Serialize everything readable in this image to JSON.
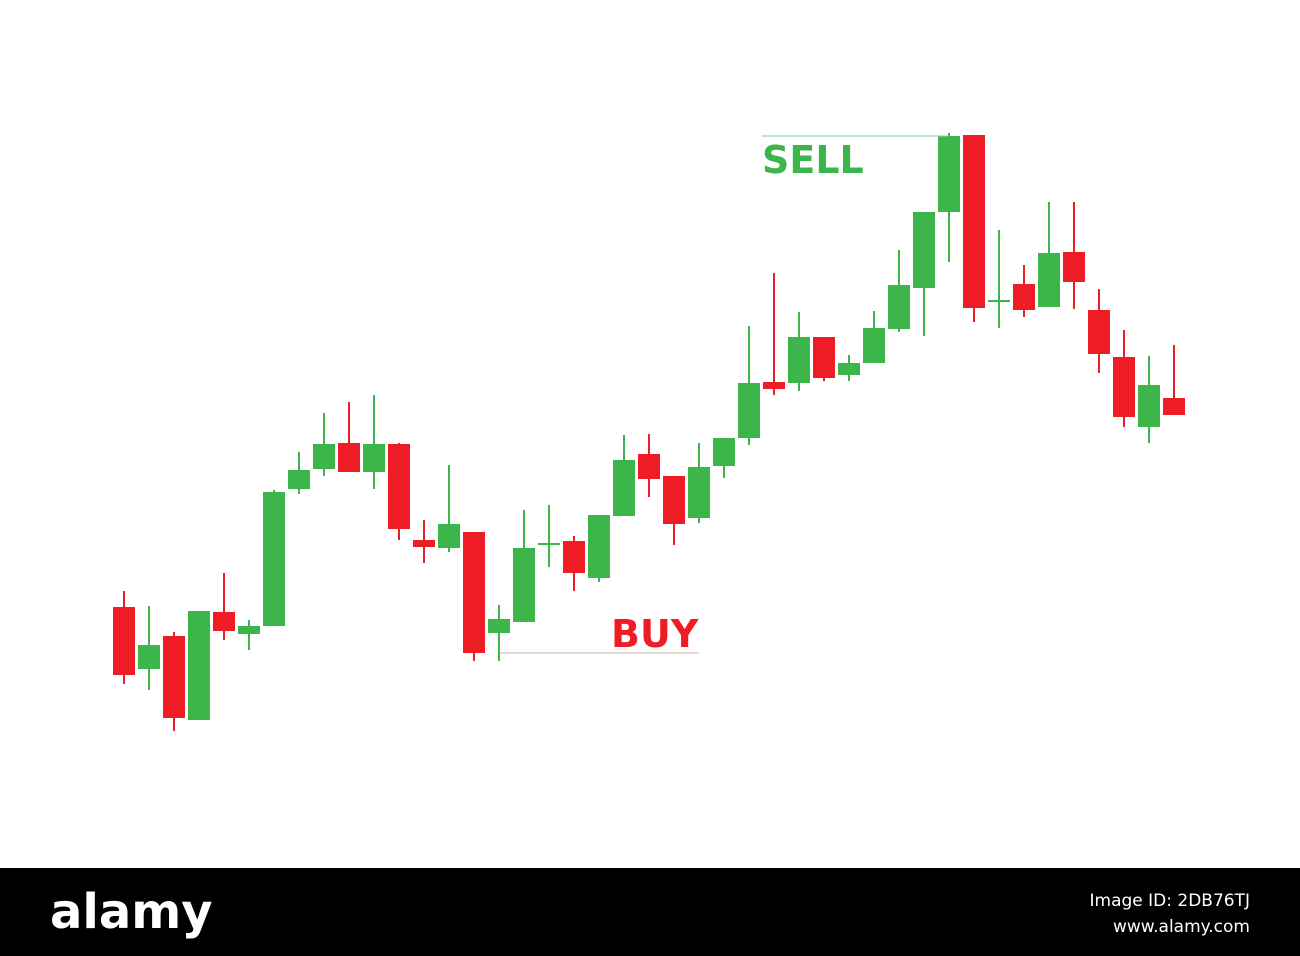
{
  "chart_data": {
    "type": "candlestick",
    "categories": [
      null,
      null,
      null,
      null,
      null,
      null,
      null,
      null,
      null,
      null,
      null,
      null,
      null,
      null,
      null,
      null,
      null,
      null,
      null,
      null,
      null,
      null,
      null,
      null,
      null,
      null,
      null,
      null,
      null,
      null,
      null,
      null,
      null,
      null,
      null,
      null,
      null,
      null,
      null,
      null,
      null,
      null,
      null
    ],
    "open": [
      193,
      131,
      164,
      80,
      188,
      166,
      174,
      311,
      331,
      357,
      328,
      356,
      260,
      252,
      268,
      167,
      178,
      255,
      259,
      222,
      284,
      346,
      324,
      282,
      334,
      362,
      418,
      417,
      463,
      425,
      437,
      471,
      512,
      588,
      665,
      498,
      516,
      493,
      548,
      490,
      443,
      373,
      402
    ],
    "high": [
      209,
      194,
      168,
      189,
      227,
      180,
      310,
      348,
      387,
      398,
      405,
      357,
      280,
      335,
      268,
      195,
      290,
      295,
      264,
      285,
      365,
      366,
      324,
      357,
      362,
      474,
      527,
      488,
      463,
      445,
      489,
      550,
      588,
      667,
      665,
      570,
      535,
      598,
      598,
      511,
      470,
      444,
      455
    ],
    "low": [
      116,
      110,
      69,
      80,
      160,
      150,
      174,
      306,
      324,
      328,
      311,
      260,
      237,
      248,
      139,
      139,
      178,
      233,
      209,
      218,
      284,
      303,
      255,
      277,
      322,
      355,
      405,
      409,
      419,
      419,
      437,
      468,
      464,
      538,
      478,
      472,
      483,
      493,
      491,
      427,
      373,
      357,
      385
    ],
    "close": [
      125,
      155,
      82,
      189,
      169,
      174,
      308,
      330,
      356,
      328,
      356,
      271,
      253,
      276,
      147,
      181,
      252,
      257,
      227,
      285,
      340,
      321,
      276,
      333,
      362,
      417,
      411,
      463,
      422,
      437,
      472,
      515,
      588,
      664,
      492,
      500,
      490,
      547,
      518,
      446,
      383,
      415,
      385
    ],
    "up_color": "#3cb54a",
    "down_color": "#ee1c25",
    "ylim": [
      0,
      800
    ],
    "annotations": [
      {
        "text": "SELL",
        "color": "#3cb54a"
      },
      {
        "text": "BUY",
        "color": "#ee1c25"
      }
    ]
  },
  "footer": {
    "brand": "alamy",
    "image_id": "Image ID: 2DB76TJ",
    "url": "www.alamy.com"
  }
}
